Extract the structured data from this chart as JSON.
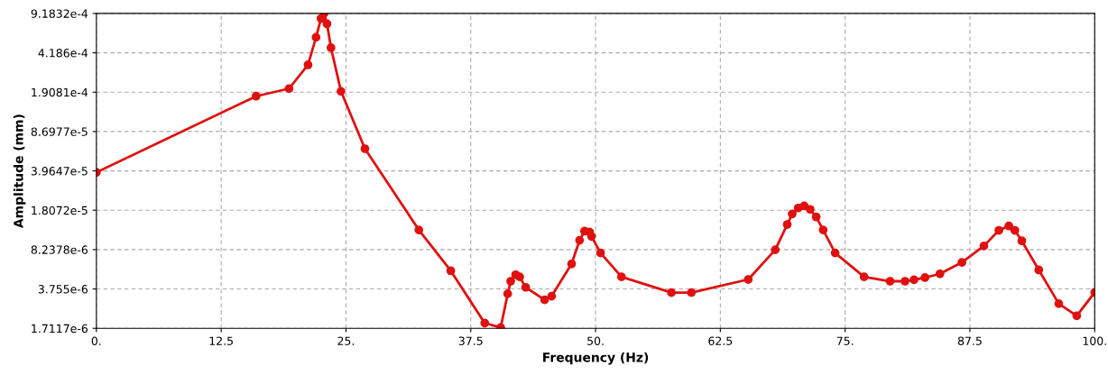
{
  "chart_data": {
    "type": "line",
    "xlabel": "Frequency (Hz)",
    "ylabel": "Amplitude (mm)",
    "log": "y",
    "grid": true,
    "marker": "circle",
    "line_style": "solid",
    "xlim": [
      0,
      100
    ],
    "xticks": [
      {
        "value": 0,
        "label": "0."
      },
      12.5,
      {
        "value": 25,
        "label": "25."
      },
      37.5,
      {
        "value": 50,
        "label": "50."
      },
      62.5,
      {
        "value": 75,
        "label": "75."
      },
      87.5,
      {
        "value": 100,
        "label": "100."
      }
    ],
    "ylim": [
      1.7117e-06,
      0.00091832
    ],
    "yticks": [
      {
        "value": 1.7117e-06,
        "label": "1.7117e-6"
      },
      {
        "value": 3.755e-06,
        "label": "3.755e-6"
      },
      {
        "value": 8.2378e-06,
        "label": "8.2378e-6"
      },
      {
        "value": 1.8072e-05,
        "label": "1.8072e-5"
      },
      {
        "value": 3.9647e-05,
        "label": "3.9647e-5"
      },
      {
        "value": 8.6977e-05,
        "label": "8.6977e-5"
      },
      {
        "value": 0.00019081,
        "label": "1.9081e-4"
      },
      {
        "value": 0.0004186,
        "label": "4.186e-4"
      },
      {
        "value": 0.00091832,
        "label": "9.1832e-4"
      }
    ],
    "series": [
      {
        "color": "#e01010",
        "x": [
          0,
          16.0,
          19.3,
          21.2,
          22.0,
          22.5,
          22.8,
          23.1,
          23.5,
          24.5,
          26.9,
          32.3,
          35.5,
          38.9,
          40.5,
          41.2,
          41.5,
          42.0,
          42.4,
          43.0,
          44.9,
          45.6,
          47.6,
          48.4,
          48.9,
          49.4,
          49.6,
          50.5,
          52.6,
          57.6,
          59.6,
          65.3,
          68.0,
          69.2,
          69.7,
          70.3,
          70.9,
          71.5,
          72.1,
          72.8,
          74.0,
          76.9,
          79.5,
          81.0,
          81.9,
          83.0,
          84.5,
          86.7,
          88.9,
          90.4,
          91.4,
          92.0,
          92.7,
          94.4,
          96.4,
          98.2,
          100
        ],
        "values": [
          3.85e-05,
          0.000176,
          0.000205,
          0.000329,
          0.00057,
          0.00083,
          0.000918,
          0.000746,
          0.000463,
          0.000194,
          6.17e-05,
          1.22e-05,
          5.39e-06,
          1.9e-06,
          1.74e-06,
          3.41e-06,
          4.38e-06,
          4.99e-06,
          4.78e-06,
          3.88e-06,
          3.02e-06,
          3.25e-06,
          6.19e-06,
          9.92e-06,
          1.19e-05,
          1.17e-05,
          1.07e-05,
          7.71e-06,
          4.78e-06,
          3.49e-06,
          3.49e-06,
          4.54e-06,
          8.2e-06,
          1.36e-05,
          1.68e-05,
          1.89e-05,
          1.97e-05,
          1.84e-05,
          1.58e-05,
          1.22e-05,
          7.71e-06,
          4.78e-06,
          4.38e-06,
          4.38e-06,
          4.51e-06,
          4.71e-06,
          5.08e-06,
          6.38e-06,
          8.86e-06,
          1.21e-05,
          1.32e-05,
          1.21e-05,
          9.81e-06,
          5.49e-06,
          2.8e-06,
          2.2e-06,
          3.51e-06
        ]
      }
    ]
  }
}
